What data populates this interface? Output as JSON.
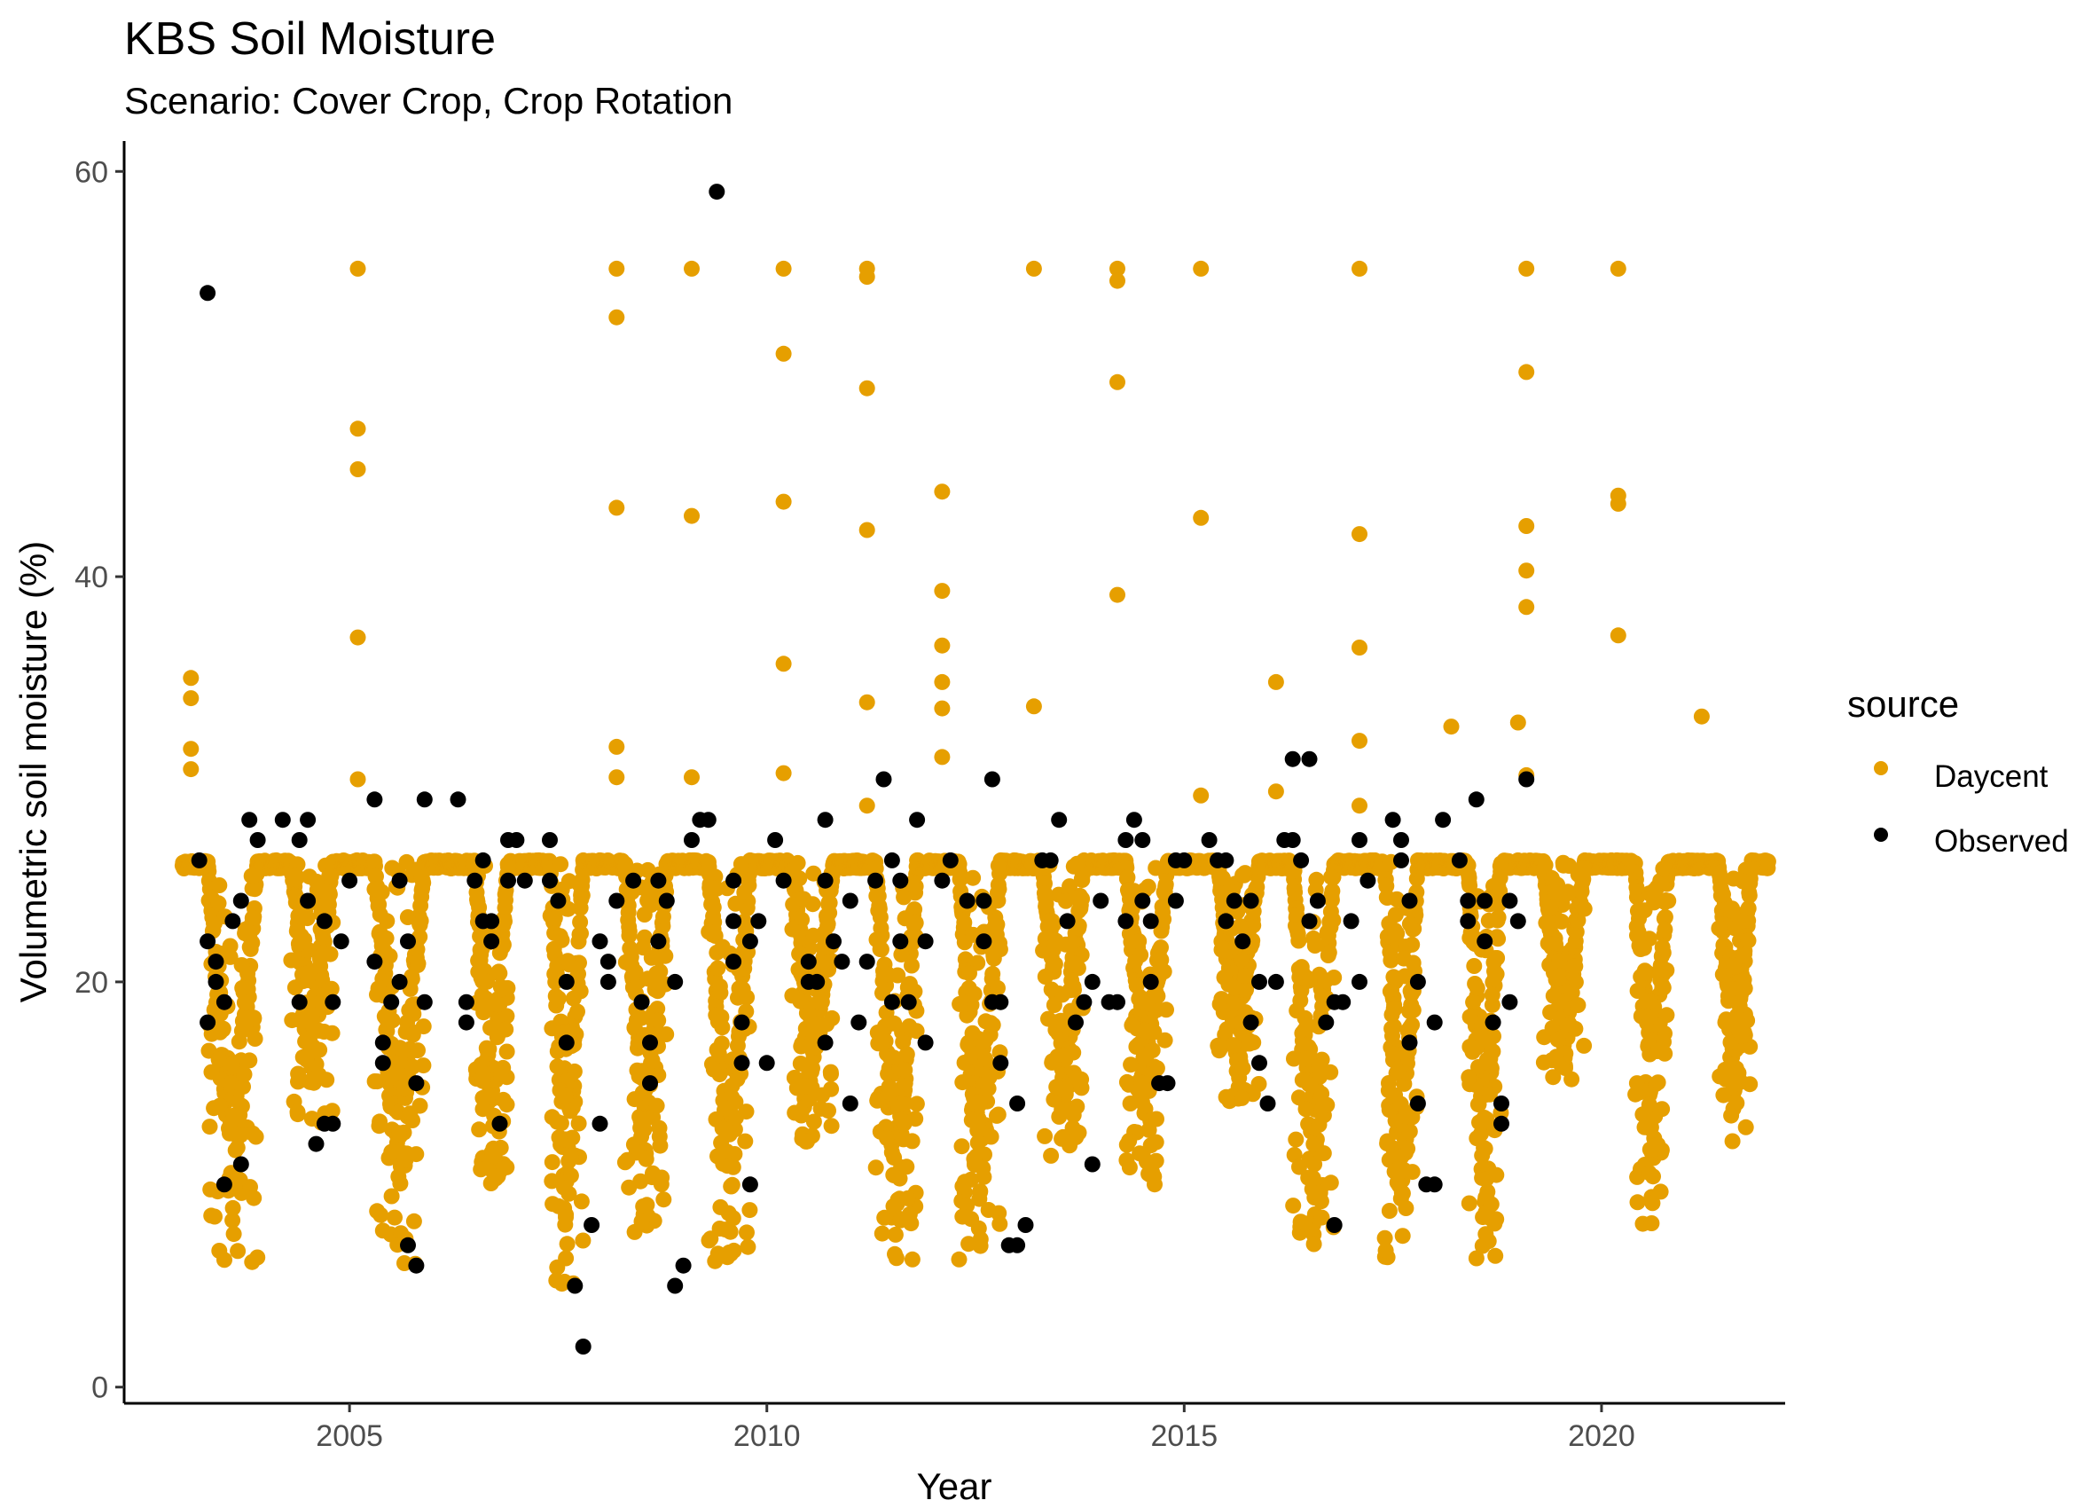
{
  "title": "KBS Soil Moisture",
  "subtitle": "Scenario: Cover Crop, Crop Rotation",
  "colors": {
    "Daycent": "#E69F00",
    "Observed": "#000000"
  },
  "chart_data": {
    "type": "scatter",
    "title": "KBS Soil Moisture",
    "subtitle": "Scenario: Cover Crop, Crop Rotation",
    "xlabel": "Year",
    "ylabel": "Volumetric soil moisture (%)",
    "xlim": [
      2002.3,
      2022.2
    ],
    "ylim": [
      -0.8,
      61.5
    ],
    "x_ticks": [
      2005,
      2010,
      2015,
      2020
    ],
    "y_ticks": [
      0,
      20,
      40,
      60
    ],
    "grid": false,
    "legend": {
      "title": "source",
      "placement": "right",
      "entries": [
        "Daycent",
        "Observed"
      ]
    },
    "series": [
      {
        "name": "Daycent",
        "color": "#E69F00",
        "baseline": 26,
        "baseline_range": [
          2003.0,
          2022.0
        ],
        "dry_spells": [
          [
            2003.3,
            2003.9,
            6
          ],
          [
            2004.3,
            2004.8,
            13
          ],
          [
            2005.3,
            2005.9,
            6
          ],
          [
            2006.5,
            2006.9,
            10
          ],
          [
            2007.4,
            2007.8,
            5
          ],
          [
            2008.3,
            2008.8,
            6
          ],
          [
            2009.3,
            2009.8,
            6
          ],
          [
            2010.3,
            2010.8,
            12
          ],
          [
            2011.3,
            2011.8,
            6
          ],
          [
            2012.3,
            2012.8,
            6
          ],
          [
            2013.3,
            2013.8,
            11
          ],
          [
            2014.3,
            2014.8,
            10
          ],
          [
            2015.4,
            2015.9,
            14
          ],
          [
            2016.3,
            2016.8,
            7
          ],
          [
            2017.4,
            2017.8,
            6
          ],
          [
            2018.4,
            2018.8,
            6
          ],
          [
            2019.3,
            2019.8,
            15
          ],
          [
            2020.4,
            2020.8,
            8
          ],
          [
            2021.4,
            2021.8,
            12
          ]
        ],
        "peaks": [
          [
            2003.1,
            35
          ],
          [
            2003.1,
            34
          ],
          [
            2003.1,
            31.5
          ],
          [
            2003.1,
            30.5
          ],
          [
            2005.1,
            55.2
          ],
          [
            2005.1,
            47.3
          ],
          [
            2005.1,
            45.3
          ],
          [
            2005.1,
            37
          ],
          [
            2005.1,
            30
          ],
          [
            2008.2,
            55.2
          ],
          [
            2008.2,
            52.8
          ],
          [
            2008.2,
            43.4
          ],
          [
            2008.2,
            31.6
          ],
          [
            2008.2,
            30.1
          ],
          [
            2009.1,
            55.2
          ],
          [
            2009.1,
            43
          ],
          [
            2009.1,
            30.1
          ],
          [
            2010.2,
            55.2
          ],
          [
            2010.2,
            51
          ],
          [
            2010.2,
            43.7
          ],
          [
            2010.2,
            35.7
          ],
          [
            2010.2,
            30.3
          ],
          [
            2011.2,
            55.2
          ],
          [
            2011.2,
            54.8
          ],
          [
            2011.2,
            49.3
          ],
          [
            2011.2,
            42.3
          ],
          [
            2011.2,
            33.8
          ],
          [
            2011.2,
            28.7
          ],
          [
            2012.1,
            44.2
          ],
          [
            2012.1,
            39.3
          ],
          [
            2012.1,
            36.6
          ],
          [
            2012.1,
            34.8
          ],
          [
            2012.1,
            33.5
          ],
          [
            2012.1,
            31.1
          ],
          [
            2013.2,
            55.2
          ],
          [
            2013.2,
            33.6
          ],
          [
            2014.2,
            55.2
          ],
          [
            2014.2,
            54.6
          ],
          [
            2014.2,
            49.6
          ],
          [
            2014.2,
            39.1
          ],
          [
            2015.2,
            55.2
          ],
          [
            2015.2,
            42.9
          ],
          [
            2015.2,
            29.2
          ],
          [
            2016.1,
            34.8
          ],
          [
            2016.1,
            29.4
          ],
          [
            2017.1,
            55.2
          ],
          [
            2017.1,
            42.1
          ],
          [
            2017.1,
            36.5
          ],
          [
            2017.1,
            31.9
          ],
          [
            2017.1,
            28.7
          ],
          [
            2018.2,
            32.6
          ],
          [
            2019.1,
            55.2
          ],
          [
            2019.1,
            50.1
          ],
          [
            2019.1,
            42.5
          ],
          [
            2019.1,
            40.3
          ],
          [
            2019.1,
            38.5
          ],
          [
            2019.1,
            30.2
          ],
          [
            2019.0,
            32.8
          ],
          [
            2020.2,
            55.2
          ],
          [
            2020.2,
            44
          ],
          [
            2020.2,
            43.6
          ],
          [
            2020.2,
            37.1
          ],
          [
            2021.2,
            33.1
          ]
        ]
      },
      {
        "name": "Observed",
        "color": "#000000",
        "points": [
          [
            2003.3,
            54
          ],
          [
            2003.2,
            26
          ],
          [
            2003.3,
            22
          ],
          [
            2003.4,
            21
          ],
          [
            2003.4,
            20
          ],
          [
            2003.5,
            19
          ],
          [
            2003.3,
            18
          ],
          [
            2003.5,
            10
          ],
          [
            2003.7,
            11
          ],
          [
            2003.6,
            23
          ],
          [
            2003.7,
            24
          ],
          [
            2003.8,
            28
          ],
          [
            2003.9,
            27
          ],
          [
            2004.2,
            28
          ],
          [
            2004.4,
            27
          ],
          [
            2004.5,
            28
          ],
          [
            2004.5,
            24
          ],
          [
            2004.4,
            19
          ],
          [
            2004.6,
            12
          ],
          [
            2004.7,
            13
          ],
          [
            2004.8,
            13
          ],
          [
            2004.7,
            23
          ],
          [
            2004.8,
            19
          ],
          [
            2004.9,
            22
          ],
          [
            2005.0,
            25
          ],
          [
            2005.3,
            29
          ],
          [
            2005.3,
            21
          ],
          [
            2005.4,
            17
          ],
          [
            2005.4,
            16
          ],
          [
            2005.5,
            19
          ],
          [
            2005.6,
            20
          ],
          [
            2005.6,
            25
          ],
          [
            2005.7,
            22
          ],
          [
            2005.7,
            7
          ],
          [
            2005.8,
            6
          ],
          [
            2005.8,
            15
          ],
          [
            2005.9,
            19
          ],
          [
            2005.9,
            29
          ],
          [
            2006.3,
            29
          ],
          [
            2006.4,
            18
          ],
          [
            2006.4,
            19
          ],
          [
            2006.5,
            25
          ],
          [
            2006.6,
            26
          ],
          [
            2006.6,
            23
          ],
          [
            2006.7,
            22
          ],
          [
            2006.7,
            23
          ],
          [
            2006.8,
            13
          ],
          [
            2006.9,
            25
          ],
          [
            2006.9,
            27
          ],
          [
            2007.0,
            27
          ],
          [
            2007.1,
            25
          ],
          [
            2007.4,
            25
          ],
          [
            2007.4,
            27
          ],
          [
            2007.5,
            24
          ],
          [
            2007.6,
            20
          ],
          [
            2007.6,
            17
          ],
          [
            2007.7,
            5
          ],
          [
            2007.8,
            2
          ],
          [
            2007.9,
            8
          ],
          [
            2008.0,
            13
          ],
          [
            2008.0,
            22
          ],
          [
            2008.1,
            20
          ],
          [
            2008.1,
            21
          ],
          [
            2008.2,
            24
          ],
          [
            2008.4,
            25
          ],
          [
            2008.5,
            19
          ],
          [
            2008.6,
            17
          ],
          [
            2008.6,
            15
          ],
          [
            2008.7,
            22
          ],
          [
            2008.8,
            24
          ],
          [
            2008.9,
            20
          ],
          [
            2008.9,
            5
          ],
          [
            2009.0,
            6
          ],
          [
            2008.7,
            25
          ],
          [
            2009.1,
            27
          ],
          [
            2009.2,
            28
          ],
          [
            2009.3,
            28
          ],
          [
            2009.4,
            59
          ],
          [
            2009.6,
            21
          ],
          [
            2009.6,
            23
          ],
          [
            2009.6,
            25
          ],
          [
            2009.7,
            18
          ],
          [
            2009.7,
            16
          ],
          [
            2009.8,
            10
          ],
          [
            2009.8,
            22
          ],
          [
            2009.9,
            23
          ],
          [
            2010.0,
            16
          ],
          [
            2010.1,
            27
          ],
          [
            2010.2,
            25
          ],
          [
            2010.5,
            21
          ],
          [
            2010.5,
            20
          ],
          [
            2010.6,
            20
          ],
          [
            2010.7,
            17
          ],
          [
            2010.7,
            25
          ],
          [
            2010.7,
            28
          ],
          [
            2010.8,
            22
          ],
          [
            2010.9,
            21
          ],
          [
            2011.0,
            24
          ],
          [
            2011.0,
            14
          ],
          [
            2011.1,
            18
          ],
          [
            2011.2,
            21
          ],
          [
            2011.3,
            25
          ],
          [
            2011.4,
            30
          ],
          [
            2011.5,
            19
          ],
          [
            2011.5,
            26
          ],
          [
            2011.6,
            25
          ],
          [
            2011.6,
            22
          ],
          [
            2011.7,
            19
          ],
          [
            2011.8,
            28
          ],
          [
            2011.9,
            22
          ],
          [
            2011.9,
            17
          ],
          [
            2012.1,
            25
          ],
          [
            2012.2,
            26
          ],
          [
            2012.4,
            24
          ],
          [
            2012.6,
            22
          ],
          [
            2012.6,
            24
          ],
          [
            2012.7,
            19
          ],
          [
            2012.7,
            30
          ],
          [
            2012.8,
            16
          ],
          [
            2012.8,
            19
          ],
          [
            2012.9,
            7
          ],
          [
            2013.0,
            7
          ],
          [
            2013.0,
            14
          ],
          [
            2013.1,
            8
          ],
          [
            2013.3,
            26
          ],
          [
            2013.4,
            26
          ],
          [
            2013.5,
            28
          ],
          [
            2013.6,
            23
          ],
          [
            2013.7,
            18
          ],
          [
            2013.8,
            19
          ],
          [
            2013.9,
            20
          ],
          [
            2013.9,
            11
          ],
          [
            2014.0,
            24
          ],
          [
            2014.1,
            19
          ],
          [
            2014.2,
            19
          ],
          [
            2014.3,
            23
          ],
          [
            2014.3,
            27
          ],
          [
            2014.4,
            28
          ],
          [
            2014.5,
            27
          ],
          [
            2014.5,
            24
          ],
          [
            2014.6,
            20
          ],
          [
            2014.6,
            23
          ],
          [
            2014.7,
            15
          ],
          [
            2014.8,
            15
          ],
          [
            2014.9,
            24
          ],
          [
            2014.9,
            26
          ],
          [
            2015.0,
            26
          ],
          [
            2015.3,
            27
          ],
          [
            2015.4,
            26
          ],
          [
            2015.5,
            26
          ],
          [
            2015.5,
            23
          ],
          [
            2015.6,
            24
          ],
          [
            2015.7,
            22
          ],
          [
            2015.8,
            24
          ],
          [
            2015.8,
            18
          ],
          [
            2015.9,
            16
          ],
          [
            2015.9,
            20
          ],
          [
            2016.0,
            14
          ],
          [
            2016.1,
            20
          ],
          [
            2016.2,
            27
          ],
          [
            2016.3,
            27
          ],
          [
            2016.4,
            26
          ],
          [
            2016.3,
            31
          ],
          [
            2016.5,
            31
          ],
          [
            2016.5,
            23
          ],
          [
            2016.6,
            24
          ],
          [
            2016.7,
            18
          ],
          [
            2016.8,
            8
          ],
          [
            2016.8,
            19
          ],
          [
            2016.9,
            19
          ],
          [
            2017.0,
            23
          ],
          [
            2017.1,
            20
          ],
          [
            2017.1,
            27
          ],
          [
            2017.2,
            25
          ],
          [
            2017.5,
            28
          ],
          [
            2017.6,
            27
          ],
          [
            2017.6,
            26
          ],
          [
            2017.7,
            24
          ],
          [
            2017.7,
            17
          ],
          [
            2017.8,
            14
          ],
          [
            2017.8,
            20
          ],
          [
            2017.9,
            10
          ],
          [
            2018.0,
            10
          ],
          [
            2018.0,
            18
          ],
          [
            2018.1,
            28
          ],
          [
            2018.3,
            26
          ],
          [
            2018.4,
            23
          ],
          [
            2018.4,
            24
          ],
          [
            2018.5,
            29
          ],
          [
            2018.6,
            24
          ],
          [
            2018.6,
            22
          ],
          [
            2018.7,
            18
          ],
          [
            2018.8,
            14
          ],
          [
            2018.8,
            13
          ],
          [
            2018.9,
            24
          ],
          [
            2018.9,
            19
          ],
          [
            2019.0,
            23
          ],
          [
            2019.1,
            30
          ]
        ]
      }
    ]
  }
}
